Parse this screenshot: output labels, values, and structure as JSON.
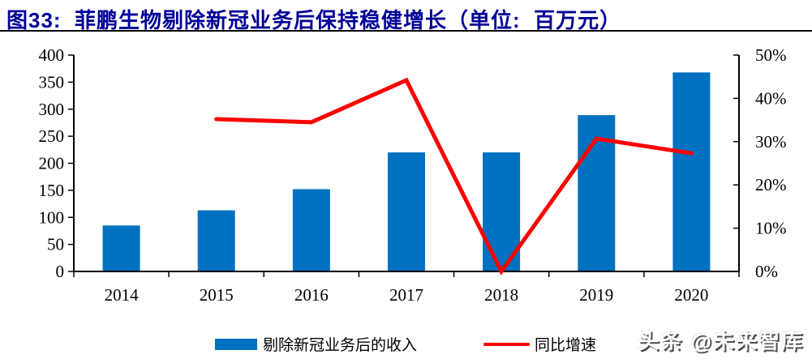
{
  "title": {
    "full": "图33:  菲鹏生物剔除新冠业务后保持稳健增长（单位:  百万元）"
  },
  "colors": {
    "title": "#000099",
    "bar": "#0070C0",
    "line": "#FE0000",
    "axis": "#000000",
    "tick_text": "#000000"
  },
  "legend": [
    {
      "label": "剔除新冠业务后的收入",
      "swatch": "bar"
    },
    {
      "label": "同比增速",
      "swatch": "line"
    }
  ],
  "watermark": "头条 @未来智库",
  "chart_data": {
    "type": "bar",
    "title": "菲鹏生物剔除新冠业务后保持稳健增长",
    "unit": "百万元",
    "categories": [
      "2014",
      "2015",
      "2016",
      "2017",
      "2018",
      "2019",
      "2020"
    ],
    "series": [
      {
        "name": "剔除新冠业务后的收入",
        "type": "bar",
        "axis": "left",
        "values": [
          85,
          113,
          152,
          220,
          220,
          289,
          368
        ]
      },
      {
        "name": "同比增速",
        "type": "line",
        "axis": "right",
        "values": [
          null,
          35.2,
          34.5,
          44.2,
          0,
          30.7,
          27.3
        ]
      }
    ],
    "left_axis": {
      "min": 0,
      "max": 400,
      "step": 50,
      "tick_labels": [
        "0",
        "50",
        "100",
        "150",
        "200",
        "250",
        "300",
        "350",
        "400"
      ]
    },
    "right_axis": {
      "min": 0,
      "max": 50,
      "step": 10,
      "unit": "%",
      "tick_labels": [
        "0%",
        "10%",
        "20%",
        "30%",
        "40%",
        "50%"
      ]
    },
    "grid": false,
    "legend_position": "bottom"
  }
}
